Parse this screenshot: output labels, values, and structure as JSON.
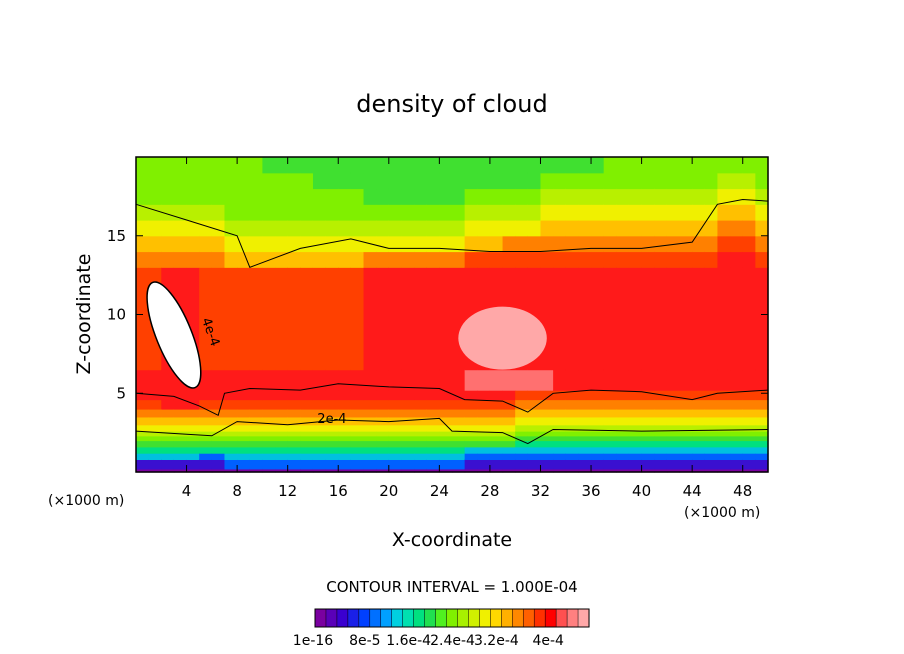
{
  "chart_data": {
    "type": "heatmap",
    "title": "density of cloud",
    "xlabel": "X-coordinate",
    "ylabel": "Z-coordinate",
    "x_unit_left": "(×1000 m)",
    "x_unit_right": "(×1000 m)",
    "xlim": [
      0,
      50
    ],
    "ylim": [
      0,
      20
    ],
    "x_ticks": [
      4,
      8,
      12,
      16,
      20,
      24,
      28,
      32,
      36,
      40,
      44,
      48
    ],
    "y_ticks": [
      5,
      10,
      15
    ],
    "contour_interval_text": "CONTOUR INTERVAL = 1.000E-04",
    "contour_labels": [
      "4e-4",
      "2e-4"
    ],
    "colorbar": {
      "colors": [
        "#7a00a0",
        "#5a00b8",
        "#3a00d0",
        "#1a20e8",
        "#0040ff",
        "#0070ff",
        "#00a0ff",
        "#00d0e0",
        "#00e0b0",
        "#00e080",
        "#20e050",
        "#50f020",
        "#80f000",
        "#a8f000",
        "#d0f000",
        "#f0f000",
        "#ffd800",
        "#ffb000",
        "#ff8800",
        "#ff6000",
        "#ff3000",
        "#ff0000",
        "#ff5050",
        "#ff8080",
        "#ffa8a8"
      ],
      "tick_labels": [
        "1e-16",
        "8e-5",
        "1.6e-4",
        "2.4e-4",
        "3.2e-4",
        "4e-4"
      ]
    },
    "palette": [
      "#7a00a0",
      "#3a10d0",
      "#0060ff",
      "#00c0e0",
      "#00e080",
      "#40e030",
      "#80f000",
      "#b8f000",
      "#f0f000",
      "#ffc000",
      "#ff8000",
      "#ff4000",
      "#ff1a1a",
      "#ff7070",
      "#ffa8a8",
      "#ffffff"
    ],
    "levels": [
      0,
      1,
      2,
      3,
      4,
      5,
      6,
      7,
      8,
      9,
      10,
      11,
      12,
      13,
      14,
      15
    ],
    "z_levels": [
      0.2,
      0.8,
      1.2,
      1.6,
      2.0,
      2.3,
      2.6,
      3.0,
      3.5,
      4.0,
      4.6,
      5.2,
      6.5,
      13.0,
      14.0,
      15.0,
      16.0,
      17.0,
      18.0,
      19.0,
      20.0
    ],
    "profiles_x": [
      0,
      4,
      6,
      8,
      12,
      16,
      20,
      24,
      28,
      31,
      34,
      40,
      44,
      48,
      50
    ],
    "profiles": [
      [
        0,
        1,
        3,
        4,
        5,
        6,
        7,
        8,
        9,
        10,
        11,
        12,
        12,
        11,
        10,
        9,
        8,
        7,
        6,
        6,
        6
      ],
      [
        0,
        1,
        3,
        4,
        5,
        6,
        7,
        8,
        9,
        10,
        12,
        12,
        12,
        12,
        10,
        9,
        8,
        7,
        6,
        6,
        6
      ],
      [
        0,
        1,
        2,
        4,
        5,
        6,
        7,
        8,
        9,
        10,
        11,
        12,
        12,
        11,
        10,
        9,
        8,
        7,
        6,
        6,
        6
      ],
      [
        0,
        2,
        3,
        4,
        5,
        6,
        7,
        8,
        9,
        10,
        11,
        12,
        12,
        11,
        9,
        8,
        7,
        6,
        6,
        6,
        6
      ],
      [
        0,
        2,
        3,
        4,
        5,
        6,
        7,
        8,
        9,
        10,
        11,
        12,
        12,
        11,
        9,
        8,
        7,
        6,
        6,
        6,
        5
      ],
      [
        0,
        2,
        3,
        4,
        5,
        6,
        7,
        8,
        9,
        10,
        11,
        12,
        12,
        11,
        9,
        8,
        7,
        6,
        6,
        5,
        5
      ],
      [
        0,
        2,
        3,
        4,
        5,
        6,
        7,
        8,
        9,
        10,
        11,
        12,
        12,
        12,
        10,
        8,
        7,
        6,
        5,
        5,
        5
      ],
      [
        0,
        2,
        3,
        4,
        5,
        6,
        7,
        8,
        9,
        10,
        11,
        12,
        12,
        12,
        10,
        8,
        7,
        6,
        5,
        5,
        5
      ],
      [
        0,
        1,
        2,
        3,
        5,
        6,
        7,
        8,
        9,
        10,
        11,
        12,
        13,
        12,
        11,
        9,
        8,
        7,
        6,
        5,
        5
      ],
      [
        0,
        1,
        2,
        3,
        4,
        5,
        6,
        7,
        8,
        9,
        10,
        11,
        13,
        12,
        11,
        10,
        8,
        7,
        6,
        5,
        5
      ],
      [
        0,
        1,
        2,
        3,
        4,
        5,
        6,
        7,
        8,
        9,
        10,
        11,
        12,
        12,
        11,
        10,
        9,
        8,
        7,
        6,
        5
      ],
      [
        0,
        1,
        2,
        3,
        4,
        5,
        6,
        7,
        8,
        9,
        10,
        11,
        12,
        12,
        11,
        10,
        9,
        8,
        7,
        6,
        6
      ],
      [
        0,
        1,
        2,
        3,
        4,
        5,
        6,
        7,
        8,
        9,
        10,
        11,
        12,
        12,
        11,
        10,
        9,
        8,
        7,
        6,
        6
      ],
      [
        0,
        1,
        2,
        3,
        4,
        5,
        6,
        7,
        8,
        9,
        10,
        11,
        12,
        12,
        12,
        11,
        10,
        9,
        8,
        7,
        6
      ],
      [
        0,
        1,
        2,
        3,
        4,
        5,
        6,
        7,
        8,
        9,
        10,
        11,
        12,
        12,
        11,
        10,
        9,
        8,
        7,
        6,
        6
      ]
    ],
    "features": [
      {
        "name": "max-core-ellipse",
        "cx": 3.0,
        "cz": 8.7,
        "rx": 1.4,
        "rz": 3.6,
        "level": 15
      },
      {
        "name": "pink-core-center",
        "cx": 29.0,
        "cz": 8.5,
        "rx": 3.5,
        "rz": 2.0,
        "level": 14
      }
    ]
  }
}
